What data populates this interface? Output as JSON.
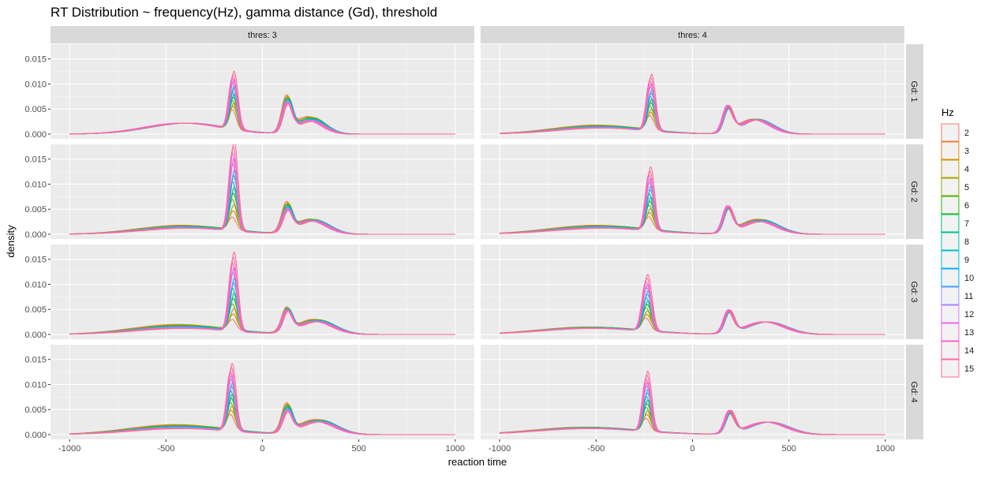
{
  "chart_data": {
    "type": "line",
    "title": "RT Distribution ~ frequency(Hz), gamma distance (Gd), threshold",
    "xlabel": "reaction time",
    "ylabel": "density",
    "xlim": [
      -1000,
      1000
    ],
    "ylim": [
      0,
      0.017
    ],
    "x_ticks": [
      -1000,
      -500,
      0,
      500,
      1000
    ],
    "x_tick_labels": [
      "-1000",
      "-500",
      "0",
      "500",
      "1000"
    ],
    "y_ticks": [
      0,
      0.005,
      0.01,
      0.015
    ],
    "y_tick_labels": [
      "0.000",
      "0.005",
      "0.010",
      "0.015"
    ],
    "grid": true,
    "legend": {
      "title": "Hz",
      "position": "right"
    },
    "facet_columns": [
      "thres: 3",
      "thres: 4"
    ],
    "facet_rows": [
      "Gd: 1",
      "Gd: 2",
      "Gd: 3",
      "Gd: 4"
    ],
    "series": [
      {
        "name": "2",
        "color": "#F8766D"
      },
      {
        "name": "3",
        "color": "#E18A00"
      },
      {
        "name": "4",
        "color": "#BE9C00"
      },
      {
        "name": "5",
        "color": "#8CAB00"
      },
      {
        "name": "6",
        "color": "#24B700"
      },
      {
        "name": "7",
        "color": "#00BE70"
      },
      {
        "name": "8",
        "color": "#00C1AB"
      },
      {
        "name": "9",
        "color": "#00BBDA"
      },
      {
        "name": "10",
        "color": "#00ACFC"
      },
      {
        "name": "11",
        "color": "#8B93FF"
      },
      {
        "name": "12",
        "color": "#D575FE"
      },
      {
        "name": "13",
        "color": "#F962DD"
      },
      {
        "name": "14",
        "color": "#FF65AC"
      },
      {
        "name": "15",
        "color": "#FF6C91"
      }
    ],
    "facets": [
      {
        "row": "Gd: 1",
        "col": "thres: 3",
        "left_tail": [
          -400,
          200,
          0.0022,
          0.0022
        ],
        "early_peak": [
          -150,
          20,
          0.004,
          0.0115
        ],
        "late_peak": [
          130,
          25,
          0.0068,
          0.0055
        ],
        "late_tail": [
          250,
          70,
          0.0035,
          0.0025
        ]
      },
      {
        "row": "Gd: 1",
        "col": "thres: 4",
        "left_tail": [
          -480,
          230,
          0.0018,
          0.0012
        ],
        "early_peak": [
          -215,
          20,
          0.0028,
          0.0113
        ],
        "late_peak": [
          185,
          25,
          0.0045,
          0.0052
        ],
        "late_tail": [
          330,
          80,
          0.003,
          0.0028
        ]
      },
      {
        "row": "Gd: 2",
        "col": "thres: 3",
        "left_tail": [
          -400,
          230,
          0.0018,
          0.0012
        ],
        "early_peak": [
          -150,
          20,
          0.0025,
          0.018
        ],
        "late_peak": [
          130,
          25,
          0.0055,
          0.004
        ],
        "late_tail": [
          260,
          80,
          0.003,
          0.0026
        ]
      },
      {
        "row": "Gd: 2",
        "col": "thres: 4",
        "left_tail": [
          -480,
          250,
          0.0018,
          0.0012
        ],
        "early_peak": [
          -220,
          20,
          0.0025,
          0.0127
        ],
        "late_peak": [
          185,
          25,
          0.0045,
          0.0052
        ],
        "late_tail": [
          350,
          90,
          0.003,
          0.0025
        ]
      },
      {
        "row": "Gd: 3",
        "col": "thres: 3",
        "left_tail": [
          -420,
          240,
          0.002,
          0.0012
        ],
        "early_peak": [
          -150,
          20,
          0.002,
          0.0158
        ],
        "late_peak": [
          130,
          25,
          0.0045,
          0.004
        ],
        "late_tail": [
          280,
          90,
          0.003,
          0.0025
        ]
      },
      {
        "row": "Gd: 3",
        "col": "thres: 4",
        "left_tail": [
          -520,
          260,
          0.0015,
          0.0012
        ],
        "early_peak": [
          -235,
          22,
          0.0025,
          0.0113
        ],
        "late_peak": [
          190,
          25,
          0.004,
          0.0045
        ],
        "late_tail": [
          380,
          100,
          0.0025,
          0.0025
        ]
      },
      {
        "row": "Gd: 4",
        "col": "thres: 3",
        "left_tail": [
          -430,
          250,
          0.002,
          0.0012
        ],
        "early_peak": [
          -160,
          20,
          0.003,
          0.0135
        ],
        "late_peak": [
          130,
          25,
          0.0055,
          0.004
        ],
        "late_tail": [
          290,
          90,
          0.003,
          0.0025
        ]
      },
      {
        "row": "Gd: 4",
        "col": "thres: 4",
        "left_tail": [
          -540,
          270,
          0.0015,
          0.0012
        ],
        "early_peak": [
          -235,
          20,
          0.0025,
          0.012
        ],
        "late_peak": [
          195,
          25,
          0.0038,
          0.0045
        ],
        "late_tail": [
          390,
          100,
          0.0025,
          0.0025
        ]
      }
    ]
  }
}
